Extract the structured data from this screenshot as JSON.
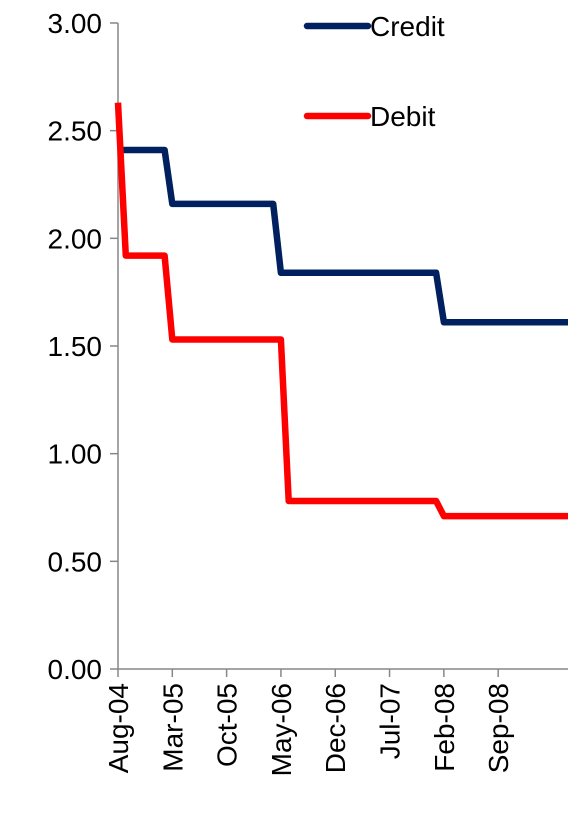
{
  "chart_data": {
    "type": "line",
    "title": "",
    "xlabel": "",
    "ylabel": "",
    "ylim": [
      0,
      3
    ],
    "grid": false,
    "legend_placement": "top-right",
    "y_ticks": [
      "0.00",
      "0.50",
      "1.00",
      "1.50",
      "2.00",
      "2.50",
      "3.00"
    ],
    "y_tick_values": [
      0,
      0.5,
      1,
      1.5,
      2,
      2.5,
      3
    ],
    "x_ticks": [
      "Aug-04",
      "Mar-05",
      "Oct-05",
      "May-06",
      "Dec-06",
      "Jul-07",
      "Feb-08",
      "Sep-08"
    ],
    "x_tick_positions": [
      "Aug-04",
      "Mar-05",
      "Oct-05",
      "May-06",
      "Dec-06",
      "Jul-07",
      "Feb-08",
      "Sep-08"
    ],
    "x_range": [
      "Aug-04",
      "Jun-09"
    ],
    "series": [
      {
        "name": "Credit",
        "color": "#002060",
        "points": [
          [
            "Aug-04",
            2.41
          ],
          [
            "Feb-05",
            2.41
          ],
          [
            "Mar-05",
            2.16
          ],
          [
            "Sep-05",
            2.16
          ],
          [
            "Oct-05",
            2.16
          ],
          [
            "Apr-06",
            2.16
          ],
          [
            "May-06",
            1.84
          ],
          [
            "Jan-08",
            1.84
          ],
          [
            "Feb-08",
            1.61
          ],
          [
            "Jun-09",
            1.61
          ]
        ]
      },
      {
        "name": "Debit",
        "color": "#ff0000",
        "points": [
          [
            "Aug-04",
            2.63
          ],
          [
            "Sep-04",
            1.92
          ],
          [
            "Feb-05",
            1.92
          ],
          [
            "Mar-05",
            1.53
          ],
          [
            "May-06",
            1.53
          ],
          [
            "Jun-06",
            0.78
          ],
          [
            "Jan-08",
            0.78
          ],
          [
            "Feb-08",
            0.71
          ],
          [
            "Jun-09",
            0.71
          ]
        ]
      }
    ]
  }
}
